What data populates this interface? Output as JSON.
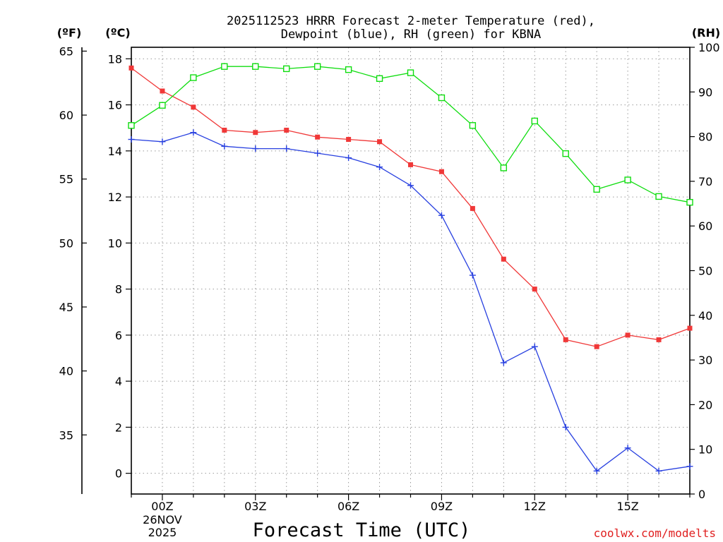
{
  "title_line1": "2025112523 HRRR Forecast 2-meter Temperature (red),",
  "title_line2": "Dewpoint (blue), RH (green) for KBNA",
  "unit_left_f": "(ºF)",
  "unit_left_c": "(ºC)",
  "unit_right_rh": "(RH)",
  "watermark": "coolwx.com/modelts",
  "chart_data": {
    "type": "line",
    "title": "2025112523 HRRR Forecast 2-meter Temperature (red), Dewpoint (blue), RH (green) for KBNA",
    "xlabel": "Forecast Time (UTC)",
    "x_hours": [
      -1,
      0,
      1,
      2,
      3,
      4,
      5,
      6,
      7,
      8,
      9,
      10,
      11,
      12,
      13,
      14,
      15,
      16,
      17
    ],
    "xlim": [
      -1,
      17
    ],
    "x_ticks": [
      {
        "hour": 0,
        "label": "00Z",
        "sub1": "26NOV",
        "sub2": "2025"
      },
      {
        "hour": 3,
        "label": "03Z"
      },
      {
        "hour": 6,
        "label": "06Z"
      },
      {
        "hour": 9,
        "label": "09Z"
      },
      {
        "hour": 12,
        "label": "12Z"
      },
      {
        "hour": 15,
        "label": "15Z"
      }
    ],
    "y_celsius": {
      "lim": [
        -0.9,
        18.5
      ],
      "ticks": [
        0,
        2,
        4,
        6,
        8,
        10,
        12,
        14,
        16,
        18
      ]
    },
    "y_fahrenheit": {
      "ticks": [
        35,
        40,
        45,
        50,
        55,
        60,
        65
      ]
    },
    "y_rh": {
      "lim": [
        0,
        100
      ],
      "ticks": [
        0,
        10,
        20,
        30,
        40,
        50,
        60,
        70,
        80,
        90,
        100
      ]
    },
    "series": [
      {
        "name": "Temperature",
        "axis": "celsius",
        "color": "#f03838",
        "marker": "filled-square",
        "values": [
          17.6,
          16.6,
          15.9,
          14.9,
          14.8,
          14.9,
          14.6,
          14.5,
          14.4,
          13.4,
          13.1,
          11.5,
          9.3,
          8.0,
          5.8,
          5.5,
          6.0,
          5.8,
          6.3
        ]
      },
      {
        "name": "Dewpoint",
        "axis": "celsius",
        "color": "#2840e0",
        "marker": "plus",
        "values": [
          14.5,
          14.4,
          14.8,
          14.2,
          14.1,
          14.1,
          13.9,
          13.7,
          13.3,
          12.5,
          11.2,
          8.6,
          4.8,
          5.5,
          2.0,
          0.1,
          1.1,
          0.1,
          0.3
        ]
      },
      {
        "name": "RH",
        "axis": "rh",
        "color": "#10dd10",
        "marker": "open-square",
        "values": [
          82.5,
          87,
          93.2,
          95.7,
          95.7,
          95.2,
          95.7,
          95,
          93,
          94.3,
          88.7,
          82.5,
          73,
          83.5,
          76.2,
          68.2,
          70.3,
          66.6,
          65.3
        ]
      }
    ]
  }
}
